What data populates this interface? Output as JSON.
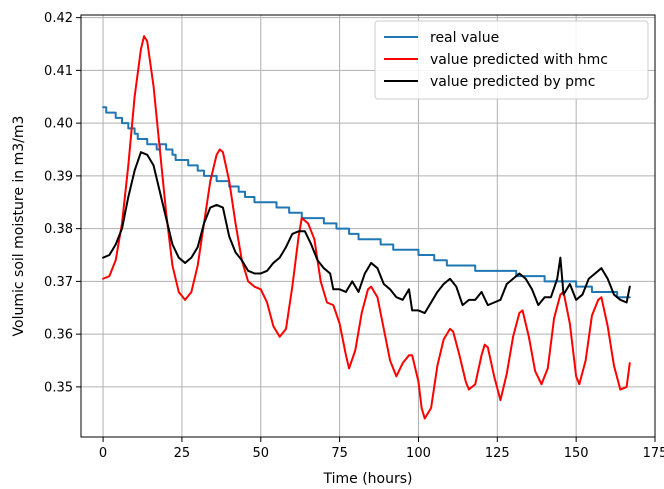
{
  "chart_data": {
    "type": "line",
    "xlabel": "Time (hours)",
    "ylabel": "Volumic soil moisture in m3/m3",
    "xlim": [
      -7,
      175
    ],
    "ylim": [
      0.3405,
      0.4205
    ],
    "xticks": [
      0,
      25,
      50,
      75,
      100,
      125,
      150,
      175
    ],
    "yticks": [
      0.35,
      0.36,
      0.37,
      0.38,
      0.39,
      0.4,
      0.41,
      0.42
    ],
    "grid": true,
    "legend_position": "top-right",
    "series": [
      {
        "name": "real value",
        "color": "#1f77b4",
        "step": true,
        "points": [
          [
            0,
            0.403
          ],
          [
            1,
            0.402
          ],
          [
            4,
            0.401
          ],
          [
            6,
            0.4
          ],
          [
            8,
            0.399
          ],
          [
            10,
            0.398
          ],
          [
            11,
            0.397
          ],
          [
            14,
            0.396
          ],
          [
            17,
            0.395
          ],
          [
            18,
            0.396
          ],
          [
            20,
            0.395
          ],
          [
            22,
            0.394
          ],
          [
            23,
            0.393
          ],
          [
            27,
            0.392
          ],
          [
            30,
            0.391
          ],
          [
            32,
            0.39
          ],
          [
            36,
            0.389
          ],
          [
            40,
            0.388
          ],
          [
            43,
            0.387
          ],
          [
            45,
            0.386
          ],
          [
            48,
            0.385
          ],
          [
            52,
            0.385
          ],
          [
            55,
            0.384
          ],
          [
            59,
            0.383
          ],
          [
            63,
            0.382
          ],
          [
            66,
            0.382
          ],
          [
            70,
            0.381
          ],
          [
            74,
            0.38
          ],
          [
            78,
            0.379
          ],
          [
            81,
            0.378
          ],
          [
            85,
            0.378
          ],
          [
            88,
            0.377
          ],
          [
            92,
            0.376
          ],
          [
            96,
            0.376
          ],
          [
            100,
            0.375
          ],
          [
            105,
            0.374
          ],
          [
            109,
            0.373
          ],
          [
            114,
            0.373
          ],
          [
            118,
            0.372
          ],
          [
            122,
            0.372
          ],
          [
            127,
            0.372
          ],
          [
            131,
            0.371
          ],
          [
            136,
            0.371
          ],
          [
            140,
            0.37
          ],
          [
            145,
            0.37
          ],
          [
            150,
            0.369
          ],
          [
            155,
            0.368
          ],
          [
            160,
            0.368
          ],
          [
            163,
            0.367
          ],
          [
            167,
            0.367
          ]
        ]
      },
      {
        "name": "value predicted with hmc",
        "color": "#ff0000",
        "step": false,
        "points": [
          [
            0,
            0.3705
          ],
          [
            2,
            0.371
          ],
          [
            4,
            0.374
          ],
          [
            6,
            0.381
          ],
          [
            8,
            0.392
          ],
          [
            10,
            0.405
          ],
          [
            12,
            0.414
          ],
          [
            13,
            0.4165
          ],
          [
            14,
            0.4155
          ],
          [
            16,
            0.407
          ],
          [
            18,
            0.395
          ],
          [
            20,
            0.383
          ],
          [
            22,
            0.373
          ],
          [
            24,
            0.368
          ],
          [
            26,
            0.3665
          ],
          [
            28,
            0.368
          ],
          [
            30,
            0.373
          ],
          [
            32,
            0.381
          ],
          [
            34,
            0.389
          ],
          [
            36,
            0.394
          ],
          [
            37,
            0.395
          ],
          [
            38,
            0.3945
          ],
          [
            40,
            0.389
          ],
          [
            42,
            0.381
          ],
          [
            44,
            0.374
          ],
          [
            46,
            0.37
          ],
          [
            48,
            0.369
          ],
          [
            50,
            0.3685
          ],
          [
            52,
            0.366
          ],
          [
            54,
            0.3615
          ],
          [
            56,
            0.3595
          ],
          [
            58,
            0.361
          ],
          [
            60,
            0.369
          ],
          [
            62,
            0.3785
          ],
          [
            63,
            0.382
          ],
          [
            65,
            0.381
          ],
          [
            67,
            0.378
          ],
          [
            69,
            0.37
          ],
          [
            71,
            0.366
          ],
          [
            73,
            0.3655
          ],
          [
            75,
            0.362
          ],
          [
            77,
            0.356
          ],
          [
            78,
            0.3535
          ],
          [
            80,
            0.357
          ],
          [
            82,
            0.364
          ],
          [
            84,
            0.3685
          ],
          [
            85,
            0.369
          ],
          [
            87,
            0.367
          ],
          [
            89,
            0.361
          ],
          [
            91,
            0.355
          ],
          [
            93,
            0.352
          ],
          [
            95,
            0.3545
          ],
          [
            97,
            0.356
          ],
          [
            98,
            0.356
          ],
          [
            100,
            0.351
          ],
          [
            101,
            0.346
          ],
          [
            102,
            0.344
          ],
          [
            104,
            0.346
          ],
          [
            106,
            0.354
          ],
          [
            108,
            0.359
          ],
          [
            110,
            0.361
          ],
          [
            111,
            0.3605
          ],
          [
            113,
            0.356
          ],
          [
            115,
            0.351
          ],
          [
            116,
            0.3495
          ],
          [
            118,
            0.3505
          ],
          [
            120,
            0.356
          ],
          [
            121,
            0.358
          ],
          [
            122,
            0.3575
          ],
          [
            124,
            0.352
          ],
          [
            126,
            0.3475
          ],
          [
            128,
            0.3525
          ],
          [
            130,
            0.3595
          ],
          [
            132,
            0.364
          ],
          [
            133,
            0.3645
          ],
          [
            135,
            0.3595
          ],
          [
            137,
            0.353
          ],
          [
            139,
            0.3505
          ],
          [
            141,
            0.3535
          ],
          [
            143,
            0.363
          ],
          [
            145,
            0.3675
          ],
          [
            146,
            0.368
          ],
          [
            148,
            0.362
          ],
          [
            150,
            0.352
          ],
          [
            151,
            0.3505
          ],
          [
            153,
            0.355
          ],
          [
            155,
            0.3635
          ],
          [
            157,
            0.3665
          ],
          [
            158,
            0.367
          ],
          [
            160,
            0.3615
          ],
          [
            162,
            0.354
          ],
          [
            164,
            0.3495
          ],
          [
            166,
            0.35
          ],
          [
            167,
            0.3545
          ]
        ]
      },
      {
        "name": "value predicted by pmc",
        "color": "#000000",
        "step": false,
        "points": [
          [
            0,
            0.3745
          ],
          [
            2,
            0.375
          ],
          [
            4,
            0.377
          ],
          [
            6,
            0.38
          ],
          [
            8,
            0.386
          ],
          [
            10,
            0.391
          ],
          [
            12,
            0.3945
          ],
          [
            14,
            0.394
          ],
          [
            16,
            0.392
          ],
          [
            18,
            0.387
          ],
          [
            20,
            0.382
          ],
          [
            22,
            0.377
          ],
          [
            24,
            0.3745
          ],
          [
            26,
            0.3735
          ],
          [
            28,
            0.3745
          ],
          [
            30,
            0.3765
          ],
          [
            32,
            0.381
          ],
          [
            34,
            0.384
          ],
          [
            36,
            0.3845
          ],
          [
            38,
            0.384
          ],
          [
            40,
            0.3785
          ],
          [
            42,
            0.3755
          ],
          [
            44,
            0.374
          ],
          [
            46,
            0.372
          ],
          [
            48,
            0.3715
          ],
          [
            50,
            0.3715
          ],
          [
            52,
            0.372
          ],
          [
            54,
            0.3735
          ],
          [
            56,
            0.3745
          ],
          [
            58,
            0.3765
          ],
          [
            60,
            0.379
          ],
          [
            62,
            0.3795
          ],
          [
            64,
            0.3795
          ],
          [
            66,
            0.377
          ],
          [
            68,
            0.374
          ],
          [
            70,
            0.3725
          ],
          [
            72,
            0.3715
          ],
          [
            73,
            0.3685
          ],
          [
            75,
            0.3685
          ],
          [
            77,
            0.368
          ],
          [
            79,
            0.37
          ],
          [
            81,
            0.368
          ],
          [
            83,
            0.3715
          ],
          [
            85,
            0.3735
          ],
          [
            87,
            0.3725
          ],
          [
            89,
            0.3695
          ],
          [
            91,
            0.3685
          ],
          [
            93,
            0.367
          ],
          [
            95,
            0.3665
          ],
          [
            97,
            0.3685
          ],
          [
            98,
            0.3645
          ],
          [
            100,
            0.3645
          ],
          [
            102,
            0.364
          ],
          [
            104,
            0.366
          ],
          [
            106,
            0.368
          ],
          [
            108,
            0.3695
          ],
          [
            110,
            0.3705
          ],
          [
            112,
            0.369
          ],
          [
            114,
            0.3655
          ],
          [
            116,
            0.3665
          ],
          [
            118,
            0.3665
          ],
          [
            120,
            0.368
          ],
          [
            122,
            0.3655
          ],
          [
            124,
            0.366
          ],
          [
            126,
            0.3665
          ],
          [
            128,
            0.3695
          ],
          [
            130,
            0.3705
          ],
          [
            132,
            0.3715
          ],
          [
            134,
            0.3705
          ],
          [
            136,
            0.3685
          ],
          [
            138,
            0.3655
          ],
          [
            140,
            0.367
          ],
          [
            142,
            0.367
          ],
          [
            144,
            0.3705
          ],
          [
            145,
            0.3745
          ],
          [
            146,
            0.3675
          ],
          [
            148,
            0.3695
          ],
          [
            150,
            0.3665
          ],
          [
            152,
            0.3675
          ],
          [
            154,
            0.3705
          ],
          [
            156,
            0.3715
          ],
          [
            158,
            0.3725
          ],
          [
            160,
            0.3705
          ],
          [
            162,
            0.3675
          ],
          [
            164,
            0.3665
          ],
          [
            166,
            0.366
          ],
          [
            167,
            0.369
          ]
        ]
      }
    ]
  }
}
